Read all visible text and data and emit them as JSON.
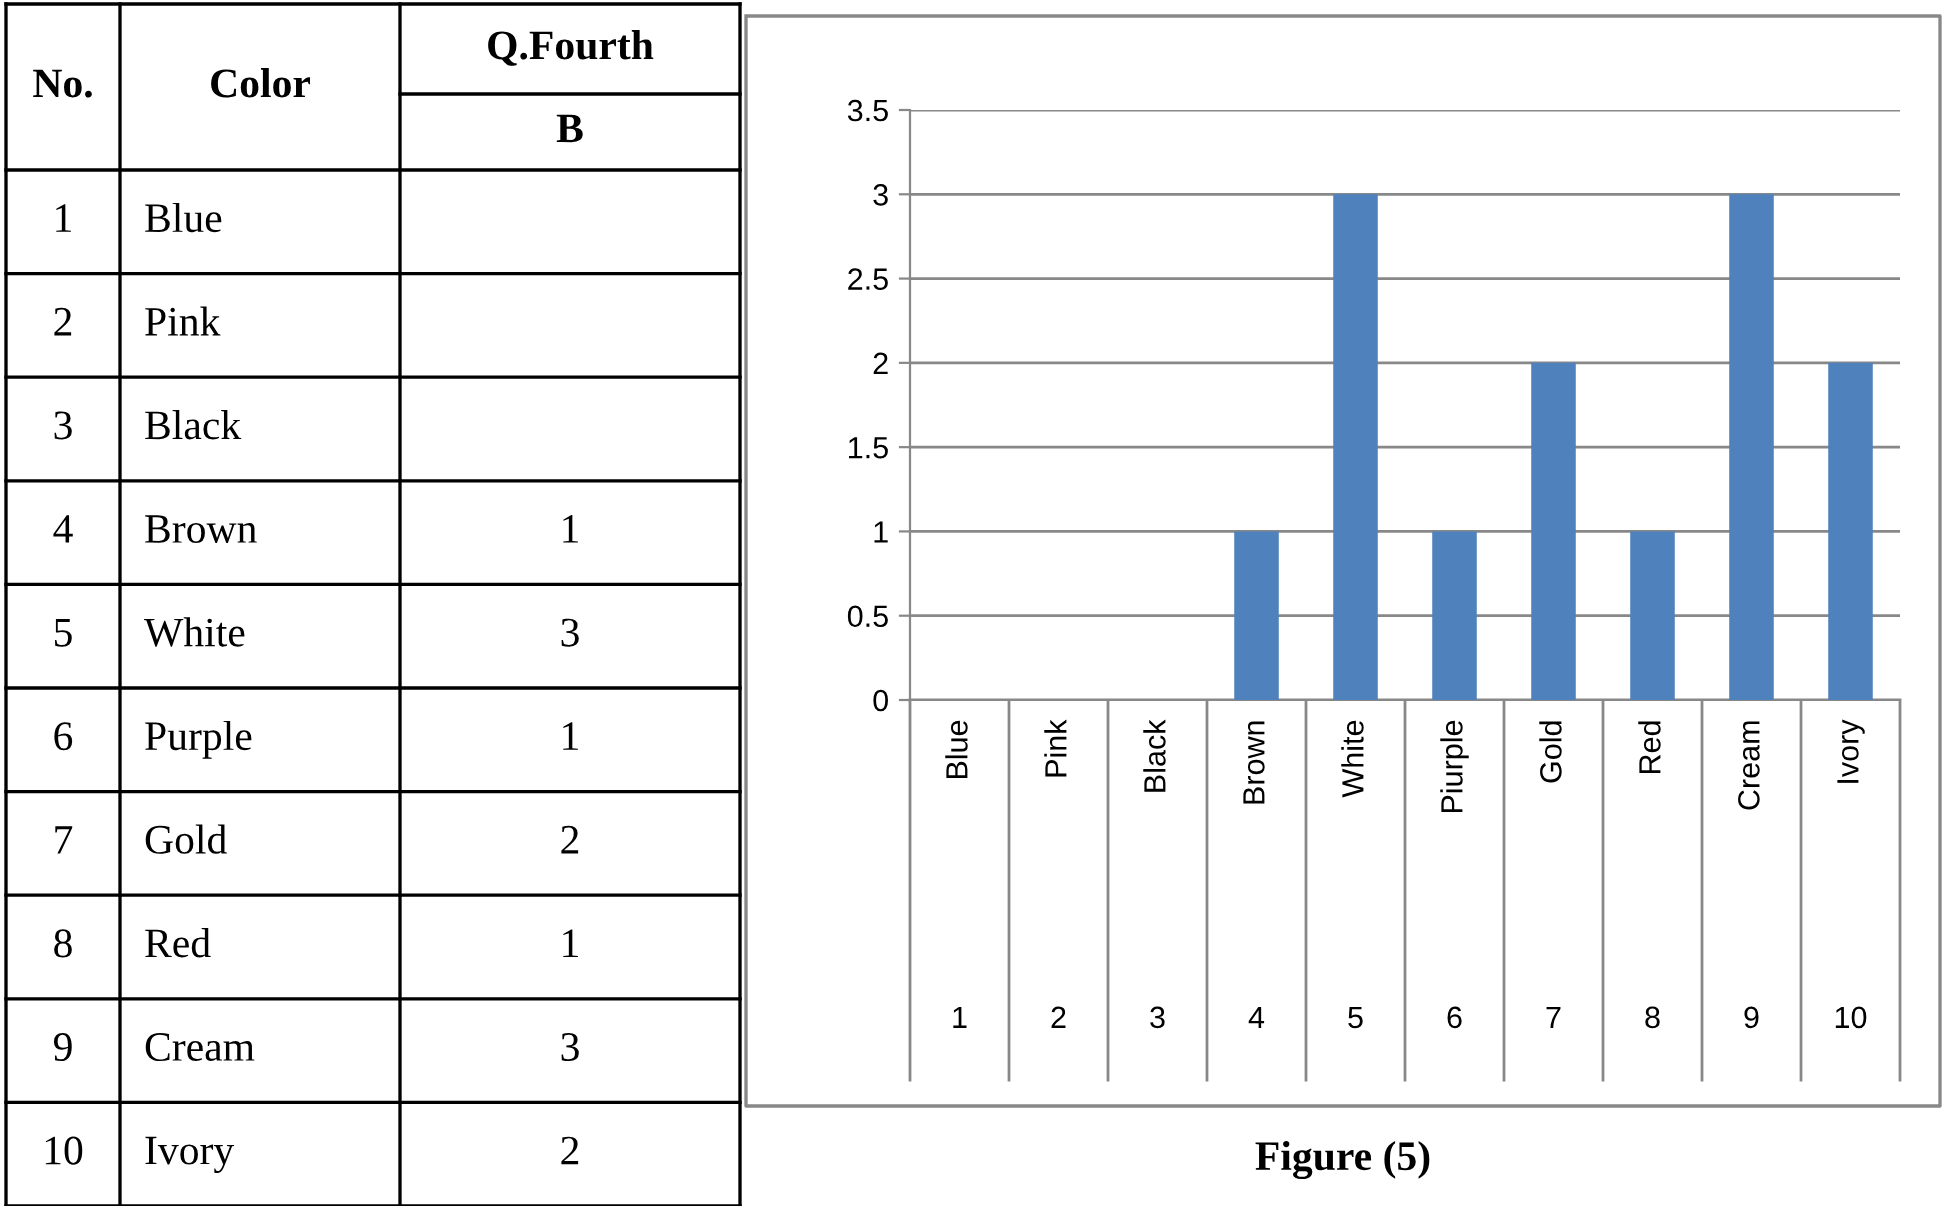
{
  "chart_data": {
    "type": "bar",
    "categories": [
      "Blue",
      "Pink",
      "Black",
      "Brown",
      "White",
      "Piurple",
      "Gold",
      "Red",
      "Cream",
      "Ivory"
    ],
    "values": [
      0,
      0,
      0,
      1,
      3,
      1,
      2,
      1,
      3,
      2
    ],
    "color": "#4f81bd",
    "ylim": [
      0,
      3.5
    ],
    "yticks": [
      0,
      0.5,
      1,
      1.5,
      2,
      2.5,
      3,
      3.5
    ],
    "grid": "y",
    "annotations": [
      "1",
      "2",
      "3",
      "4",
      "5",
      "6",
      "7",
      "8",
      "9",
      "10",
      "Figure (5)",
      "No.",
      "Color",
      "Q.Fourth",
      "B",
      "1",
      "2",
      "3",
      "4",
      "5",
      "6",
      "7",
      "8",
      "9",
      "10",
      "Blue",
      "Pink",
      "Black",
      "Brown",
      "White",
      "Purple",
      "Gold",
      "Red",
      "Cream",
      "Ivory",
      "1",
      "3",
      "1",
      "2",
      "1",
      "3",
      "2"
    ]
  }
}
